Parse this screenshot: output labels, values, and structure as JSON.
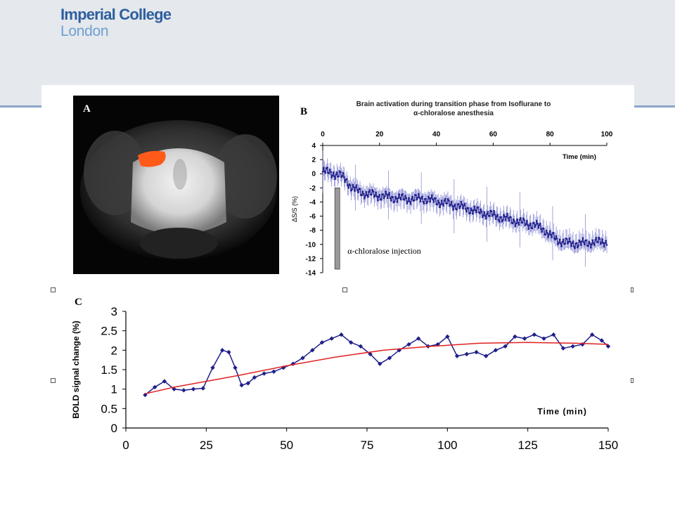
{
  "logo": {
    "line1": "Imperial College",
    "line2": "London"
  },
  "panel_a": {
    "label": "A"
  },
  "colors": {
    "header": "#e5e8ec",
    "accent_line": "#8aa7c8",
    "series_blue": "#1f1f8a",
    "fit_red": "#e02020",
    "activation": "#ff5a1a"
  },
  "chart_data": [
    {
      "type": "line",
      "panel_label": "B",
      "title": "Brain activation during transition phase from Isoflurane to",
      "title_line2": "α-chloralose anesthesia",
      "xlabel": "Time (min)",
      "ylabel": "ΔS/S (%)",
      "xlim": [
        0,
        100
      ],
      "ylim": [
        -14,
        4
      ],
      "xticks": [
        0,
        20,
        40,
        60,
        80,
        100
      ],
      "yticks": [
        4,
        2,
        0,
        -2,
        -4,
        -6,
        -8,
        -10,
        -12,
        -14
      ],
      "x_axis_position": "top",
      "annotation": "α-chloralose injection",
      "injection_bar": {
        "x": 5,
        "y_from": -2,
        "y_to": -13.5
      },
      "series": [
        {
          "x": [
            0,
            2,
            4,
            6,
            8,
            10,
            12,
            15,
            20,
            25,
            30,
            35,
            40,
            45,
            50,
            55,
            60,
            65,
            70,
            75,
            78,
            80,
            83,
            85,
            90,
            95,
            100
          ],
          "y": [
            0.3,
            0.2,
            0,
            -0.2,
            -0.8,
            -1.8,
            -2.4,
            -2.8,
            -3.1,
            -3.4,
            -3.6,
            -3.5,
            -3.9,
            -4.3,
            -4.8,
            -5.4,
            -5.9,
            -6.4,
            -6.9,
            -7.3,
            -7.9,
            -8.7,
            -9.4,
            -9.7,
            -9.9,
            -9.7,
            -9.6
          ]
        }
      ]
    },
    {
      "type": "line",
      "panel_label": "C",
      "xlabel": "Time (min)",
      "ylabel": "BOLD signal change (%)",
      "xlim": [
        0,
        150
      ],
      "ylim": [
        0,
        3
      ],
      "xticks": [
        0,
        25,
        50,
        75,
        100,
        125,
        150
      ],
      "yticks": [
        0,
        0.5,
        1,
        1.5,
        2,
        2.5,
        3
      ],
      "series": [
        {
          "x": [
            6,
            9,
            12,
            15,
            18,
            21,
            24,
            27,
            30,
            32,
            34,
            36,
            38,
            40,
            43,
            46,
            49,
            52,
            55,
            58,
            61,
            64,
            67,
            70,
            73,
            76,
            79,
            82,
            85,
            88,
            91,
            94,
            97,
            100,
            103,
            106,
            109,
            112,
            115,
            118,
            121,
            124,
            127,
            130,
            133,
            136,
            139,
            142,
            145,
            148,
            150
          ],
          "y": [
            0.85,
            1.05,
            1.2,
            1.0,
            0.97,
            1.0,
            1.02,
            1.55,
            2.0,
            1.95,
            1.55,
            1.1,
            1.15,
            1.3,
            1.4,
            1.45,
            1.55,
            1.65,
            1.8,
            2.0,
            2.2,
            2.3,
            2.4,
            2.2,
            2.1,
            1.9,
            1.65,
            1.8,
            2.0,
            2.15,
            2.3,
            2.1,
            2.15,
            2.35,
            1.85,
            1.9,
            1.95,
            1.85,
            2.0,
            2.1,
            2.35,
            2.3,
            2.4,
            2.3,
            2.4,
            2.05,
            2.1,
            2.15,
            2.4,
            2.25,
            2.1
          ]
        },
        {
          "x": [
            6,
            15,
            25,
            35,
            50,
            65,
            80,
            95,
            110,
            125,
            140,
            150
          ],
          "y": [
            0.88,
            1.05,
            1.2,
            1.35,
            1.6,
            1.82,
            2.0,
            2.1,
            2.18,
            2.2,
            2.18,
            2.15
          ]
        }
      ]
    }
  ]
}
